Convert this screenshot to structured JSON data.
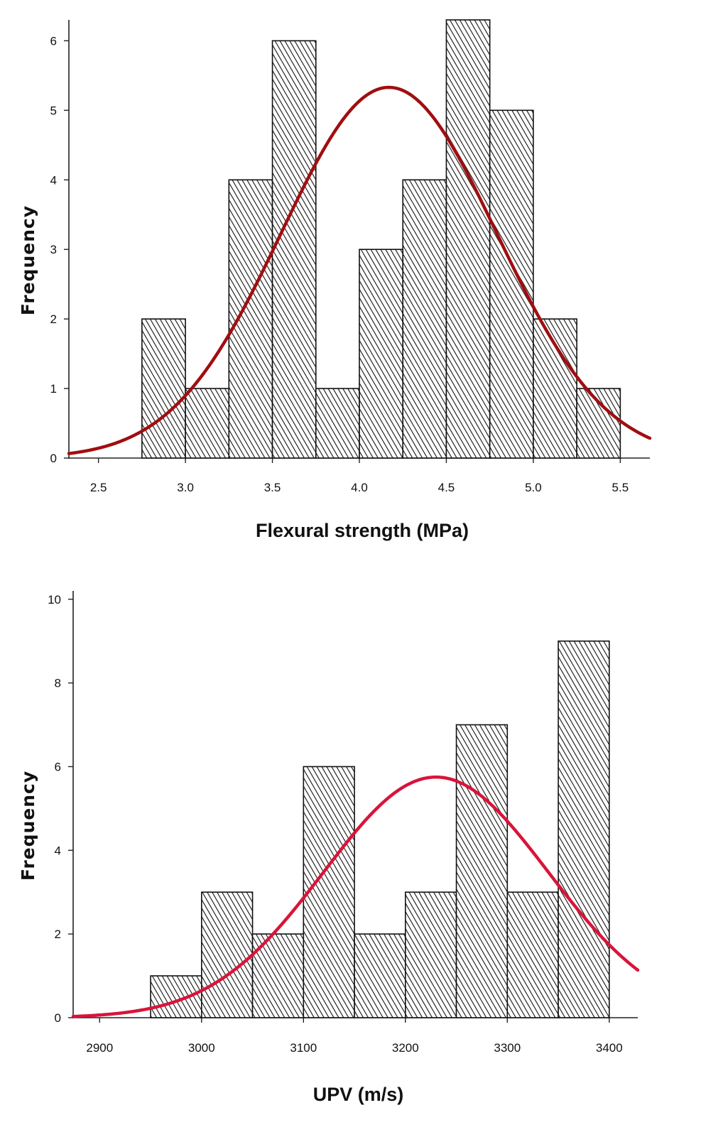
{
  "chart_data": [
    {
      "type": "bar",
      "chart_id": "flexural",
      "xlabel": "Flexural strength (MPa)",
      "ylabel": "Frequency",
      "xlim": [
        2.33,
        5.67
      ],
      "ylim": [
        0,
        6.3
      ],
      "x_ticks": [
        2.5,
        3.0,
        3.5,
        4.0,
        4.5,
        5.0,
        5.5
      ],
      "x_tick_labels": [
        "2.5",
        "3.0",
        "3.5",
        "4.0",
        "4.5",
        "5.0",
        "5.5"
      ],
      "y_ticks": [
        0,
        1,
        2,
        3,
        4,
        5,
        6
      ],
      "y_tick_labels": [
        "0",
        "1",
        "2",
        "3",
        "4",
        "5",
        "6"
      ],
      "bin_width": 0.25,
      "bin_starts": [
        2.75,
        3.0,
        3.25,
        3.5,
        3.75,
        4.0,
        4.25,
        4.5,
        4.75,
        5.0,
        5.25
      ],
      "values": [
        2,
        1,
        4,
        6,
        1,
        3,
        4,
        6.3,
        5,
        2,
        1
      ],
      "normal_curve": {
        "mean": 4.17,
        "peak": 5.33,
        "std": 0.62,
        "color": "#a00e10"
      }
    },
    {
      "type": "bar",
      "chart_id": "upv",
      "xlabel": "UPV (m/s)",
      "ylabel": "Frequency",
      "xlim": [
        2874,
        3428
      ],
      "ylim": [
        0,
        10.2
      ],
      "x_ticks": [
        2900,
        3000,
        3100,
        3200,
        3300,
        3400
      ],
      "x_tick_labels": [
        "2900",
        "3000",
        "3100",
        "3200",
        "3300",
        "3400"
      ],
      "y_ticks": [
        0,
        2,
        4,
        6,
        8,
        10
      ],
      "y_tick_labels": [
        "0",
        "2",
        "4",
        "6",
        "8",
        "10"
      ],
      "bin_width": 50,
      "bin_starts": [
        2950,
        3000,
        3050,
        3100,
        3150,
        3200,
        3250,
        3300,
        3350
      ],
      "values": [
        1,
        3,
        2,
        6,
        2,
        3,
        7,
        3,
        9
      ],
      "normal_curve": {
        "mean": 3230,
        "peak": 5.75,
        "std": 110,
        "color": "#d8143a"
      }
    }
  ]
}
